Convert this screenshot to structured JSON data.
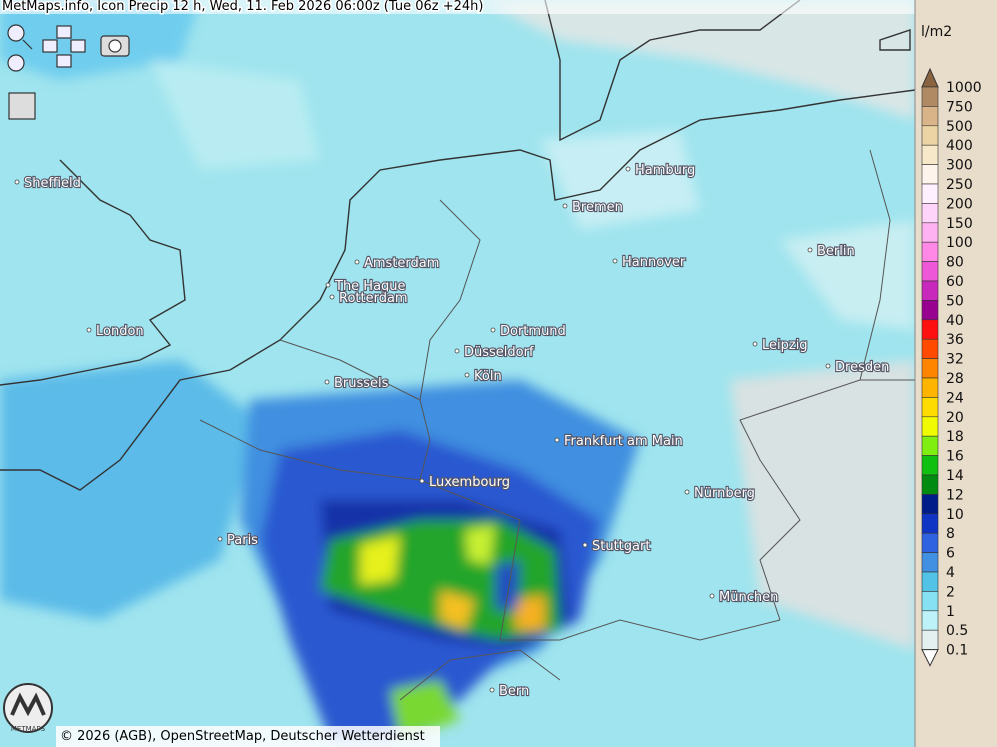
{
  "header": {
    "title": "MetMaps.info, Icon Precip 12 h, Wed, 11. Feb 2026 06:00z (Tue 06z +24h)"
  },
  "cities": [
    "Hamburg",
    "Bremen",
    "Berlin",
    "Sheffield",
    "Amsterdam",
    "Hannover",
    "The Hague",
    "Rotterdam",
    "London",
    "Dortmund",
    "Düsseldorf",
    "Leipzig",
    "Köln",
    "Brussels",
    "Dresden",
    "Frankfurt am Main",
    "Luxembourg",
    "Nürnberg",
    "Paris",
    "Stuttgart",
    "München",
    "Bern"
  ],
  "legend": {
    "unit": "l/m2",
    "labels": [
      1000,
      750,
      500,
      400,
      300,
      250,
      200,
      150,
      100,
      80,
      60,
      50,
      40,
      36,
      32,
      28,
      24,
      20,
      18,
      16,
      14,
      12,
      10,
      8,
      6,
      4,
      2,
      1,
      0.5,
      0.1
    ],
    "top_color": "#8a6440",
    "band_colors": [
      "#b08a62",
      "#d8b488",
      "#ecd4a4",
      "#f6e8c8",
      "#fdf4ec",
      "#fff0ff",
      "#ffd4fa",
      "#ffb2f2",
      "#ff88e6",
      "#ee58d8",
      "#c828bc",
      "#980090",
      "#ff1010",
      "#ff4a00",
      "#ff8400",
      "#ffb400",
      "#ffdc00",
      "#f0fa00",
      "#80ee10",
      "#10c010",
      "#008a10",
      "#001c88",
      "#1034c4",
      "#2e62e0",
      "#4290e2",
      "#52c2e6",
      "#86e2f2",
      "#bcf2f8",
      "#e4f0f0"
    ],
    "bottom_color": "#ffffff"
  },
  "logo": {
    "text": "METMAPS"
  },
  "footer": {
    "copyright": "© 2026 (AGB), OpenStreetMap, Deutscher Wetterdienst"
  }
}
